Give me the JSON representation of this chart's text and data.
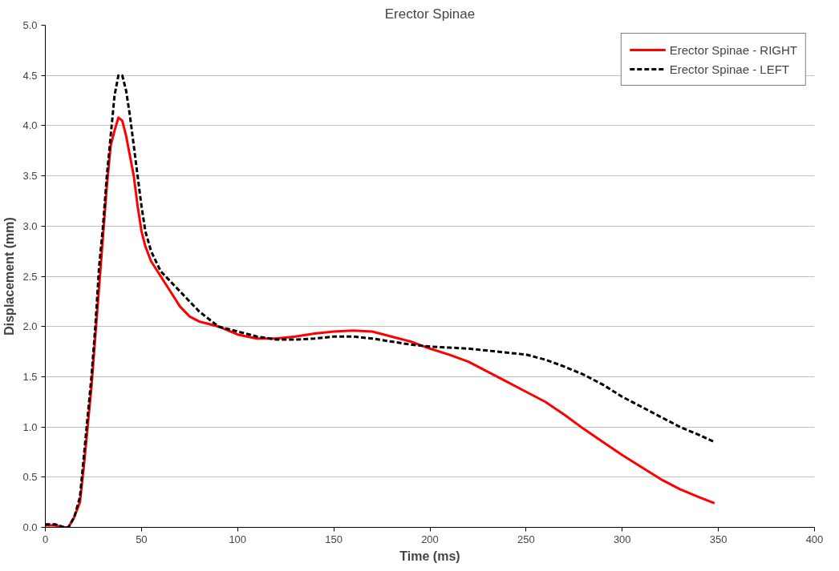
{
  "chart_data": {
    "type": "line",
    "title": "Erector Spinae",
    "xlabel": "Time (ms)",
    "ylabel": "Displacement (mm)",
    "x": [
      0,
      5,
      10,
      12,
      15,
      18,
      20,
      22,
      24,
      26,
      28,
      30,
      32,
      34,
      36,
      38,
      40,
      42,
      44,
      46,
      48,
      50,
      52,
      55,
      60,
      65,
      70,
      75,
      80,
      90,
      100,
      110,
      120,
      130,
      140,
      150,
      160,
      170,
      180,
      190,
      200,
      210,
      220,
      230,
      240,
      250,
      260,
      270,
      280,
      290,
      300,
      310,
      320,
      330,
      340,
      348
    ],
    "series": [
      {
        "name": "Erector Spinae - RIGHT",
        "color": "#ff0000",
        "line_style": "solid",
        "values": [
          0.02,
          0.02,
          0.0,
          0.0,
          0.1,
          0.25,
          0.6,
          1.0,
          1.4,
          1.9,
          2.4,
          2.9,
          3.4,
          3.8,
          3.95,
          4.08,
          4.05,
          3.9,
          3.7,
          3.5,
          3.2,
          2.95,
          2.8,
          2.65,
          2.5,
          2.35,
          2.2,
          2.1,
          2.05,
          2.0,
          1.92,
          1.88,
          1.88,
          1.9,
          1.93,
          1.95,
          1.96,
          1.95,
          1.9,
          1.85,
          1.78,
          1.72,
          1.65,
          1.55,
          1.45,
          1.35,
          1.25,
          1.12,
          0.98,
          0.85,
          0.72,
          0.6,
          0.48,
          0.38,
          0.3,
          0.24
        ]
      },
      {
        "name": "Erector Spinae - LEFT",
        "color": "#000000",
        "line_style": "dashed",
        "values": [
          0.03,
          0.03,
          0.0,
          0.0,
          0.1,
          0.3,
          0.7,
          1.1,
          1.5,
          2.0,
          2.6,
          3.0,
          3.5,
          3.9,
          4.3,
          4.5,
          4.5,
          4.35,
          4.1,
          3.8,
          3.5,
          3.2,
          2.95,
          2.75,
          2.55,
          2.45,
          2.35,
          2.25,
          2.15,
          2.0,
          1.95,
          1.9,
          1.87,
          1.87,
          1.88,
          1.9,
          1.9,
          1.88,
          1.85,
          1.82,
          1.8,
          1.79,
          1.78,
          1.76,
          1.74,
          1.72,
          1.67,
          1.6,
          1.52,
          1.42,
          1.3,
          1.2,
          1.1,
          1.0,
          0.92,
          0.85
        ]
      }
    ],
    "xlim": [
      0,
      400
    ],
    "xticks": [
      0,
      50,
      100,
      150,
      200,
      250,
      300,
      350,
      400
    ],
    "ylim": [
      0,
      5
    ],
    "yticks": [
      {
        "value": 0,
        "label": "0.0"
      },
      {
        "value": 0.5,
        "label": "0.5"
      },
      {
        "value": 1,
        "label": "1.0"
      },
      {
        "value": 1.5,
        "label": "1.5"
      },
      {
        "value": 2,
        "label": "2.0"
      },
      {
        "value": 2.5,
        "label": "2.5"
      },
      {
        "value": 3,
        "label": "3.0"
      },
      {
        "value": 3.5,
        "label": "3.5"
      },
      {
        "value": 4,
        "label": "4.0"
      },
      {
        "value": 4.5,
        "label": "4.5"
      },
      {
        "value": 5,
        "label": "5.0"
      }
    ],
    "grid": "y",
    "legend": "top right",
    "marker": "none"
  }
}
